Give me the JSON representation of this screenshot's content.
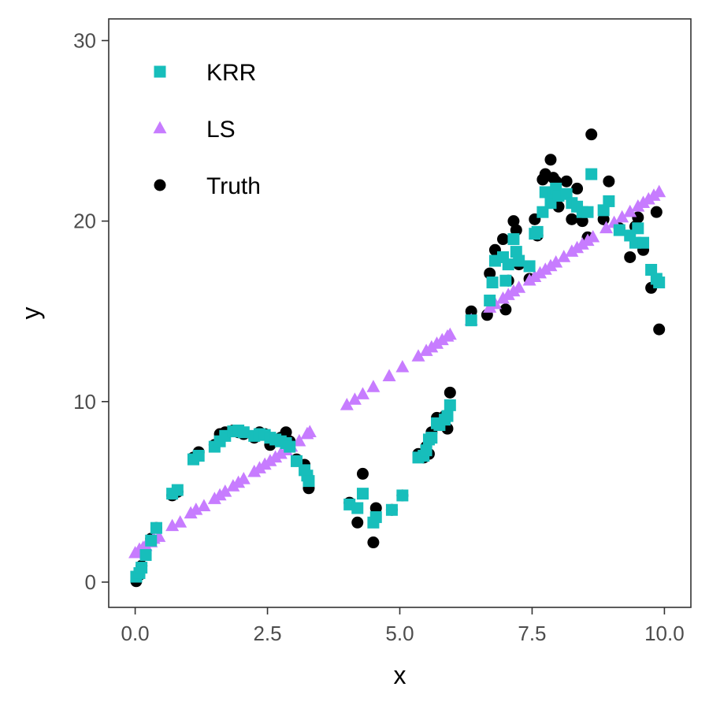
{
  "chart_data": {
    "type": "scatter",
    "xlabel": "x",
    "ylabel": "y",
    "xlim": [
      -0.5,
      10.5
    ],
    "ylim": [
      -1.4,
      31.2
    ],
    "xticks": [
      0,
      2.5,
      5,
      7.5,
      10
    ],
    "xtick_labels": [
      "0.0",
      "2.5",
      "5.0",
      "7.5",
      "10.0"
    ],
    "yticks": [
      0,
      10,
      20,
      30
    ],
    "ytick_labels": [
      "0",
      "10",
      "20",
      "30"
    ],
    "grid": false,
    "legend_position": "top-left",
    "series": [
      {
        "name": "KRR",
        "marker": "square",
        "color": "#17BEBB",
        "points": [
          [
            0.02,
            0.3
          ],
          [
            0.08,
            0.5
          ],
          [
            0.12,
            0.8
          ],
          [
            0.2,
            1.5
          ],
          [
            0.3,
            2.3
          ],
          [
            0.4,
            3.0
          ],
          [
            0.7,
            4.9
          ],
          [
            0.8,
            5.1
          ],
          [
            1.1,
            6.8
          ],
          [
            1.2,
            7.0
          ],
          [
            1.5,
            7.5
          ],
          [
            1.6,
            7.8
          ],
          [
            1.7,
            8.1
          ],
          [
            1.85,
            8.35
          ],
          [
            1.95,
            8.4
          ],
          [
            2.05,
            8.3
          ],
          [
            2.25,
            8.1
          ],
          [
            2.35,
            8.2
          ],
          [
            2.45,
            8.15
          ],
          [
            2.55,
            8.0
          ],
          [
            2.65,
            7.9
          ],
          [
            2.75,
            7.8
          ],
          [
            2.85,
            7.7
          ],
          [
            2.92,
            7.5
          ],
          [
            3.05,
            6.7
          ],
          [
            3.2,
            6.2
          ],
          [
            3.25,
            5.9
          ],
          [
            3.28,
            5.6
          ],
          [
            4.05,
            4.3
          ],
          [
            4.2,
            4.1
          ],
          [
            4.3,
            4.9
          ],
          [
            4.5,
            3.3
          ],
          [
            4.55,
            3.6
          ],
          [
            4.85,
            4.0
          ],
          [
            5.05,
            4.8
          ],
          [
            5.35,
            6.9
          ],
          [
            5.45,
            7.0
          ],
          [
            5.5,
            7.3
          ],
          [
            5.55,
            7.9
          ],
          [
            5.6,
            8.0
          ],
          [
            5.7,
            8.8
          ],
          [
            5.75,
            8.7
          ],
          [
            5.85,
            9.0
          ],
          [
            5.9,
            9.2
          ],
          [
            5.95,
            9.8
          ],
          [
            6.35,
            14.5
          ],
          [
            6.7,
            15.6
          ],
          [
            6.75,
            16.6
          ],
          [
            6.8,
            17.8
          ],
          [
            6.95,
            18.0
          ],
          [
            7.0,
            16.7
          ],
          [
            7.05,
            17.6
          ],
          [
            7.15,
            19.0
          ],
          [
            7.2,
            18.3
          ],
          [
            7.25,
            17.8
          ],
          [
            7.45,
            17.5
          ],
          [
            7.55,
            19.3
          ],
          [
            7.6,
            19.4
          ],
          [
            7.7,
            20.5
          ],
          [
            7.75,
            21.6
          ],
          [
            7.85,
            21.0
          ],
          [
            7.9,
            21.6
          ],
          [
            7.95,
            21.8
          ],
          [
            8.0,
            21.4
          ],
          [
            8.15,
            21.5
          ],
          [
            8.25,
            21.0
          ],
          [
            8.35,
            20.8
          ],
          [
            8.45,
            20.5
          ],
          [
            8.55,
            20.5
          ],
          [
            8.62,
            22.6
          ],
          [
            8.85,
            20.6
          ],
          [
            8.95,
            21.1
          ],
          [
            9.15,
            19.5
          ],
          [
            9.35,
            19.2
          ],
          [
            9.45,
            18.8
          ],
          [
            9.5,
            19.6
          ],
          [
            9.6,
            18.8
          ],
          [
            9.75,
            17.3
          ],
          [
            9.85,
            16.8
          ],
          [
            9.9,
            16.6
          ]
        ]
      },
      {
        "name": "LS",
        "marker": "triangle",
        "color": "#C77CFF",
        "points": [
          [
            0.0,
            1.6
          ],
          [
            0.08,
            1.8
          ],
          [
            0.15,
            1.9
          ],
          [
            0.2,
            2.0
          ],
          [
            0.3,
            2.2
          ],
          [
            0.35,
            2.4
          ],
          [
            0.45,
            2.5
          ],
          [
            0.7,
            3.1
          ],
          [
            0.85,
            3.3
          ],
          [
            1.05,
            3.8
          ],
          [
            1.15,
            4.0
          ],
          [
            1.3,
            4.2
          ],
          [
            1.5,
            4.6
          ],
          [
            1.6,
            4.8
          ],
          [
            1.7,
            5.0
          ],
          [
            1.85,
            5.3
          ],
          [
            1.95,
            5.5
          ],
          [
            2.05,
            5.7
          ],
          [
            2.25,
            6.1
          ],
          [
            2.35,
            6.3
          ],
          [
            2.45,
            6.5
          ],
          [
            2.55,
            6.7
          ],
          [
            2.65,
            6.9
          ],
          [
            2.75,
            7.1
          ],
          [
            2.85,
            7.3
          ],
          [
            2.95,
            7.5
          ],
          [
            3.1,
            7.8
          ],
          [
            3.25,
            8.2
          ],
          [
            3.3,
            8.3
          ],
          [
            4.0,
            9.8
          ],
          [
            4.15,
            10.1
          ],
          [
            4.3,
            10.4
          ],
          [
            4.5,
            10.8
          ],
          [
            4.8,
            11.4
          ],
          [
            5.05,
            11.9
          ],
          [
            5.35,
            12.5
          ],
          [
            5.5,
            12.8
          ],
          [
            5.6,
            13.0
          ],
          [
            5.7,
            13.2
          ],
          [
            5.8,
            13.4
          ],
          [
            5.9,
            13.6
          ],
          [
            5.95,
            13.7
          ],
          [
            6.35,
            14.5
          ],
          [
            6.7,
            15.2
          ],
          [
            6.8,
            15.4
          ],
          [
            6.95,
            15.7
          ],
          [
            7.05,
            15.9
          ],
          [
            7.15,
            16.1
          ],
          [
            7.25,
            16.3
          ],
          [
            7.45,
            16.7
          ],
          [
            7.55,
            16.9
          ],
          [
            7.65,
            17.1
          ],
          [
            7.75,
            17.3
          ],
          [
            7.85,
            17.5
          ],
          [
            7.95,
            17.7
          ],
          [
            8.1,
            18.0
          ],
          [
            8.25,
            18.3
          ],
          [
            8.35,
            18.5
          ],
          [
            8.45,
            18.7
          ],
          [
            8.55,
            18.9
          ],
          [
            8.65,
            19.1
          ],
          [
            8.9,
            19.6
          ],
          [
            9.05,
            19.9
          ],
          [
            9.2,
            20.2
          ],
          [
            9.35,
            20.5
          ],
          [
            9.5,
            20.8
          ],
          [
            9.6,
            21.0
          ],
          [
            9.7,
            21.2
          ],
          [
            9.8,
            21.4
          ],
          [
            9.9,
            21.6
          ]
        ]
      },
      {
        "name": "Truth",
        "marker": "circle",
        "color": "#000000",
        "points": [
          [
            0.02,
            0.05
          ],
          [
            0.08,
            0.4
          ],
          [
            0.12,
            0.9
          ],
          [
            0.2,
            1.6
          ],
          [
            0.3,
            2.4
          ],
          [
            0.4,
            3.0
          ],
          [
            0.7,
            4.8
          ],
          [
            0.8,
            5.0
          ],
          [
            1.1,
            6.9
          ],
          [
            1.2,
            7.2
          ],
          [
            1.5,
            7.6
          ],
          [
            1.6,
            8.2
          ],
          [
            1.7,
            8.3
          ],
          [
            1.85,
            8.4
          ],
          [
            1.95,
            8.3
          ],
          [
            2.05,
            8.2
          ],
          [
            2.25,
            8.0
          ],
          [
            2.35,
            8.3
          ],
          [
            2.45,
            8.2
          ],
          [
            2.55,
            7.6
          ],
          [
            2.65,
            7.9
          ],
          [
            2.75,
            8.0
          ],
          [
            2.85,
            8.3
          ],
          [
            2.92,
            7.8
          ],
          [
            3.05,
            6.8
          ],
          [
            3.2,
            6.5
          ],
          [
            3.25,
            5.9
          ],
          [
            3.28,
            5.2
          ],
          [
            4.05,
            4.4
          ],
          [
            4.2,
            3.3
          ],
          [
            4.3,
            6.0
          ],
          [
            4.5,
            2.2
          ],
          [
            4.55,
            4.1
          ],
          [
            4.85,
            4.0
          ],
          [
            5.05,
            4.8
          ],
          [
            5.35,
            7.1
          ],
          [
            5.45,
            6.9
          ],
          [
            5.5,
            7.5
          ],
          [
            5.55,
            7.1
          ],
          [
            5.6,
            8.3
          ],
          [
            5.7,
            9.1
          ],
          [
            5.75,
            8.8
          ],
          [
            5.85,
            9.2
          ],
          [
            5.9,
            8.5
          ],
          [
            5.95,
            10.5
          ],
          [
            6.35,
            15.0
          ],
          [
            6.65,
            14.8
          ],
          [
            6.7,
            17.1
          ],
          [
            6.8,
            18.4
          ],
          [
            6.95,
            19.0
          ],
          [
            7.0,
            15.1
          ],
          [
            7.05,
            16.7
          ],
          [
            7.15,
            20.0
          ],
          [
            7.2,
            19.5
          ],
          [
            7.25,
            17.6
          ],
          [
            7.45,
            16.8
          ],
          [
            7.55,
            20.1
          ],
          [
            7.6,
            19.2
          ],
          [
            7.7,
            22.3
          ],
          [
            7.75,
            22.6
          ],
          [
            7.85,
            23.4
          ],
          [
            7.9,
            22.4
          ],
          [
            7.95,
            22.2
          ],
          [
            8.0,
            20.8
          ],
          [
            8.15,
            22.2
          ],
          [
            8.25,
            20.1
          ],
          [
            8.35,
            21.8
          ],
          [
            8.45,
            20.0
          ],
          [
            8.55,
            19.1
          ],
          [
            8.62,
            24.8
          ],
          [
            8.85,
            20.1
          ],
          [
            8.95,
            22.2
          ],
          [
            9.15,
            19.6
          ],
          [
            9.35,
            18.0
          ],
          [
            9.45,
            19.7
          ],
          [
            9.5,
            20.2
          ],
          [
            9.6,
            18.4
          ],
          [
            9.75,
            16.3
          ],
          [
            9.85,
            20.5
          ],
          [
            9.9,
            14.0
          ]
        ]
      }
    ]
  }
}
